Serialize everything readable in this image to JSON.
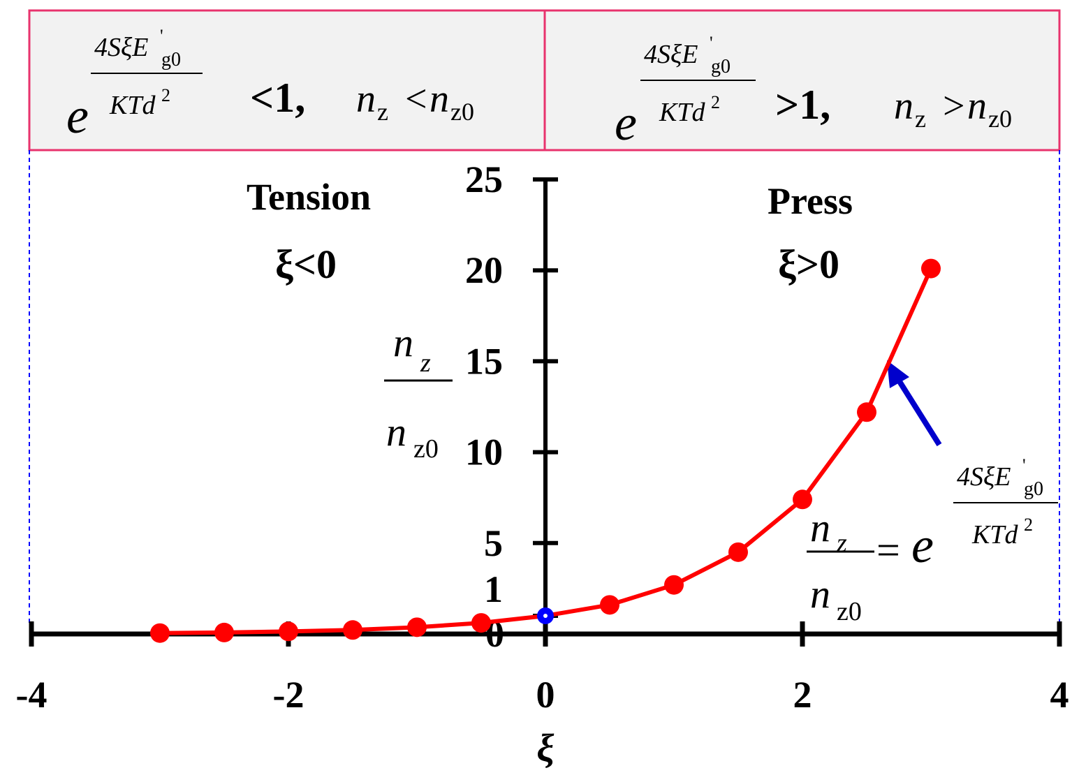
{
  "chart_data": {
    "type": "line",
    "x": [
      -3,
      -2.5,
      -2,
      -1.5,
      -1,
      -0.5,
      0,
      0.5,
      1,
      1.5,
      2,
      2.5,
      3
    ],
    "series": [
      {
        "color": "#ff0000",
        "values": [
          0.05,
          0.08,
          0.14,
          0.22,
          0.37,
          0.61,
          1,
          1.6,
          2.7,
          4.5,
          7.4,
          12.2,
          20.1
        ]
      }
    ],
    "highlight": {
      "index": 6,
      "color": "#0000ff"
    },
    "xlim": [
      -4,
      4
    ],
    "xticks": [
      -4,
      -2,
      0,
      2,
      4
    ],
    "ylim": [
      0,
      25
    ],
    "yticks": [
      0,
      1,
      5,
      10,
      15,
      20,
      25
    ],
    "xlabel": "ξ",
    "ylabel": {
      "num": "n",
      "num_sub": "z",
      "den": "n",
      "den_sub": "z0"
    },
    "regions": [
      {
        "label": "Tension",
        "condition": "ξ<0",
        "relation": "<1,",
        "compare": "<"
      },
      {
        "label": "Press",
        "condition": "ξ>0",
        "relation": ">1,",
        "compare": ">"
      }
    ],
    "formula": {
      "base": "e",
      "num": "4SξE",
      "num_sup": "'",
      "num_sub": "g0",
      "den": "KTd",
      "den_sup": "2",
      "equals": "="
    }
  }
}
